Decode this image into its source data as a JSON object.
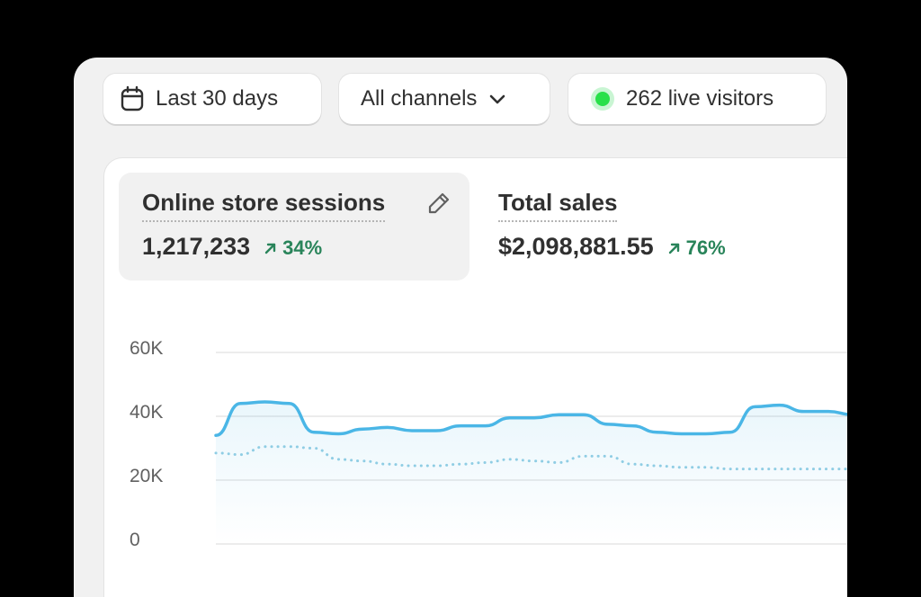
{
  "filters": {
    "date_range": "Last 30 days",
    "channel": "All channels",
    "live_visitors": "262 live visitors",
    "live_color": "#29e04a"
  },
  "metrics": [
    {
      "title": "Online store sessions",
      "value": "1,217,233",
      "change": "34%",
      "selected": true
    },
    {
      "title": "Total sales",
      "value": "$2,098,881.55",
      "change": "76%",
      "selected": false
    }
  ],
  "chart_data": {
    "type": "line",
    "ylabel": "",
    "xlabel": "",
    "y_ticks": [
      "60K",
      "40K",
      "20K",
      "0"
    ],
    "ylim": [
      0,
      60000
    ],
    "grid": true,
    "x": [
      0,
      1,
      2,
      3,
      4,
      5,
      6,
      7,
      8,
      9,
      10,
      11,
      12,
      13,
      14,
      15,
      16,
      17,
      18,
      19,
      20,
      21,
      22,
      23,
      24,
      25,
      26,
      27,
      28,
      29
    ],
    "series": [
      {
        "style": "solid",
        "color": "#4ab6e6",
        "values": [
          34000,
          44000,
          44500,
          44000,
          35000,
          34500,
          36000,
          36500,
          35500,
          35500,
          37000,
          37000,
          39500,
          39500,
          40500,
          40500,
          37500,
          37000,
          35000,
          34500,
          34500,
          35000,
          43000,
          43500,
          41500,
          41500,
          40500,
          39500,
          39500,
          39500
        ]
      },
      {
        "style": "dotted",
        "color": "#8fcde4",
        "values": [
          28500,
          28000,
          30500,
          30500,
          30000,
          26500,
          26000,
          25000,
          24500,
          24500,
          25000,
          25500,
          26500,
          26000,
          25500,
          27500,
          27500,
          25000,
          24500,
          24000,
          24000,
          23500,
          23500,
          23500,
          23500,
          23500,
          23500,
          23500,
          23500,
          23500
        ]
      }
    ]
  }
}
